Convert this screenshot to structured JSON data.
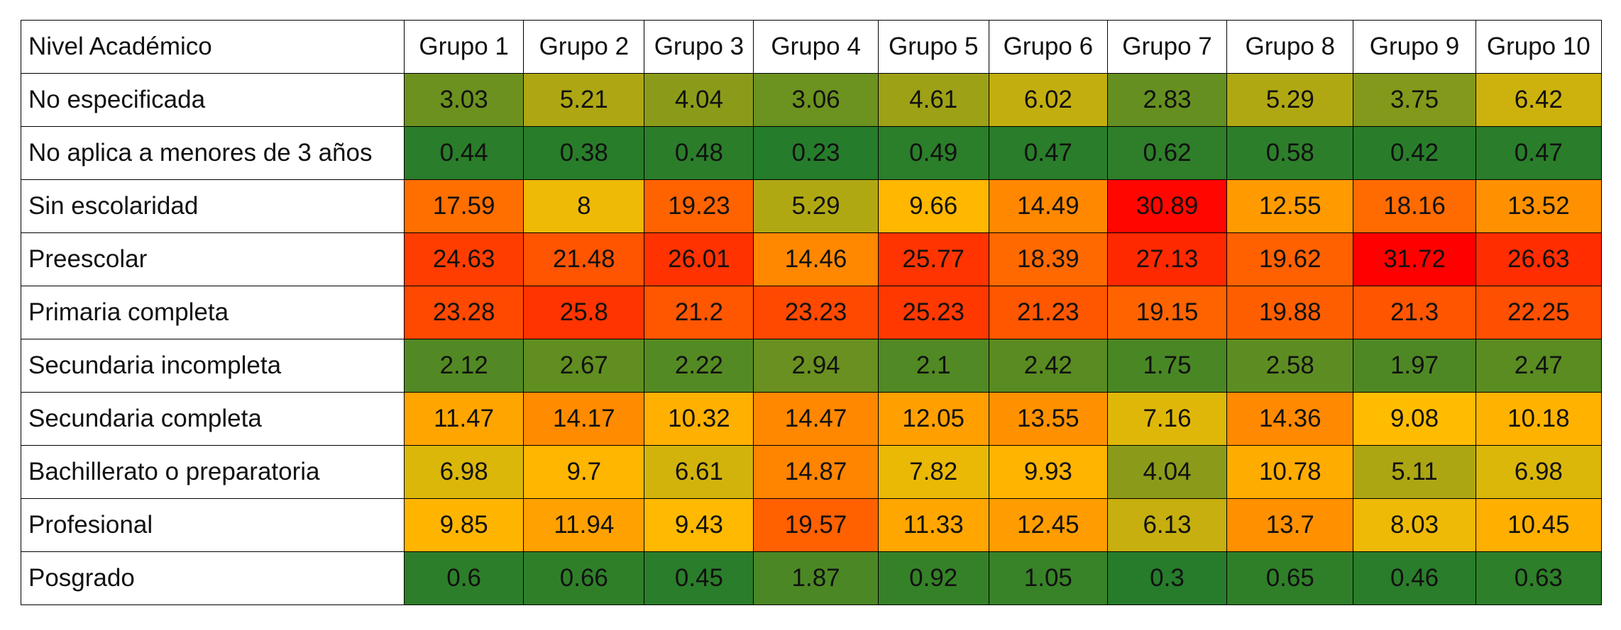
{
  "chart_data": {
    "type": "heatmap",
    "corner_label": "Nivel Académico",
    "columns": [
      "Grupo 1",
      "Grupo 2",
      "Grupo 3",
      "Grupo 4",
      "Grupo 5",
      "Grupo 6",
      "Grupo 7",
      "Grupo 8",
      "Grupo 9",
      "Grupo 10"
    ],
    "rows": [
      {
        "label": "No especificada",
        "values": [
          "3.03",
          "5.21",
          "4.04",
          "3.06",
          "4.61",
          "6.02",
          "2.83",
          "5.29",
          "3.75",
          "6.42"
        ]
      },
      {
        "label": "No aplica a menores de 3 años",
        "values": [
          "0.44",
          "0.38",
          "0.48",
          "0.23",
          "0.49",
          "0.47",
          "0.62",
          "0.58",
          "0.42",
          "0.47"
        ]
      },
      {
        "label": "Sin escolaridad",
        "values": [
          "17.59",
          "8",
          "19.23",
          "5.29",
          "9.66",
          "14.49",
          "30.89",
          "12.55",
          "18.16",
          "13.52"
        ]
      },
      {
        "label": "Preescolar",
        "values": [
          "24.63",
          "21.48",
          "26.01",
          "14.46",
          "25.77",
          "18.39",
          "27.13",
          "19.62",
          "31.72",
          "26.63"
        ]
      },
      {
        "label": "Primaria completa",
        "values": [
          "23.28",
          "25.8",
          "21.2",
          "23.23",
          "25.23",
          "21.23",
          "19.15",
          "19.88",
          "21.3",
          "22.25"
        ]
      },
      {
        "label": "Secundaria incompleta",
        "values": [
          "2.12",
          "2.67",
          "2.22",
          "2.94",
          "2.1",
          "2.42",
          "1.75",
          "2.58",
          "1.97",
          "2.47"
        ]
      },
      {
        "label": "Secundaria completa",
        "values": [
          "11.47",
          "14.17",
          "10.32",
          "14.47",
          "12.05",
          "13.55",
          "7.16",
          "14.36",
          "9.08",
          "10.18"
        ]
      },
      {
        "label": "Bachillerato o preparatoria",
        "values": [
          "6.98",
          "9.7",
          "6.61",
          "14.87",
          "7.82",
          "9.93",
          "4.04",
          "10.78",
          "5.11",
          "6.98"
        ]
      },
      {
        "label": "Profesional",
        "values": [
          "9.85",
          "11.94",
          "9.43",
          "19.57",
          "11.33",
          "12.45",
          "6.13",
          "13.7",
          "8.03",
          "10.45"
        ]
      },
      {
        "label": "Posgrado",
        "values": [
          "0.6",
          "0.66",
          "0.45",
          "1.87",
          "0.92",
          "1.05",
          "0.3",
          "0.65",
          "0.46",
          "0.63"
        ]
      }
    ],
    "color_scale": {
      "min_value": 0.23,
      "max_value": 31.72,
      "stops": [
        {
          "value": 0.0,
          "color": "#1f7a2c"
        },
        {
          "value": 2.5,
          "color": "#5b8c22"
        },
        {
          "value": 5.0,
          "color": "#a9a514"
        },
        {
          "value": 7.0,
          "color": "#dcb70a"
        },
        {
          "value": 9.0,
          "color": "#ffbd00"
        },
        {
          "value": 12.0,
          "color": "#ffa000"
        },
        {
          "value": 15.0,
          "color": "#ff8300"
        },
        {
          "value": 19.0,
          "color": "#ff6400"
        },
        {
          "value": 23.0,
          "color": "#ff4a00"
        },
        {
          "value": 27.0,
          "color": "#ff2a00"
        },
        {
          "value": 31.72,
          "color": "#ff0000"
        }
      ]
    }
  }
}
